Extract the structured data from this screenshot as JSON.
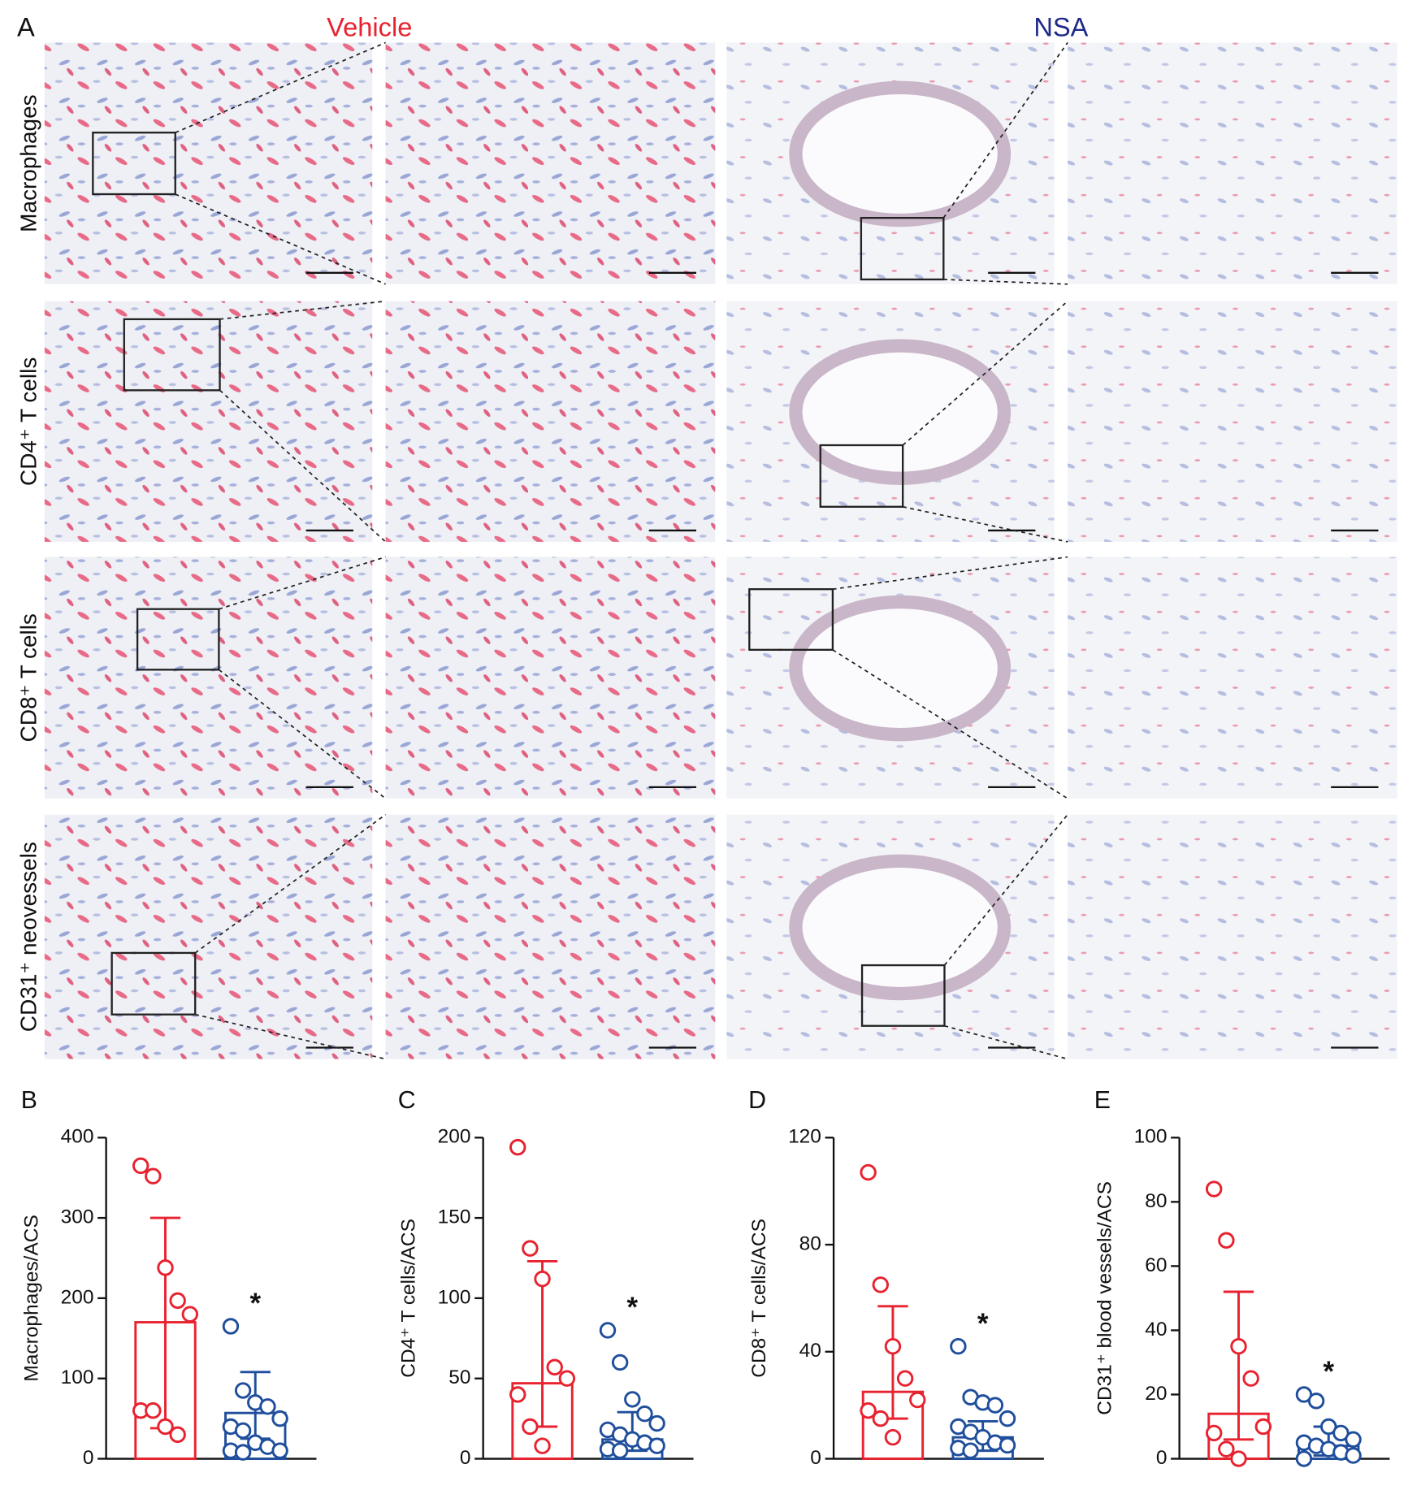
{
  "panel_a": {
    "label": "A",
    "columns": [
      "Vehicle",
      "NSA"
    ],
    "rows": [
      "Macrophages",
      "CD4⁺ T cells",
      "CD8⁺ T cells",
      "CD31⁺ neovessels"
    ]
  },
  "chart_data": [
    {
      "type": "bar",
      "label": "B",
      "y_label": "Macrophages/ACS",
      "categories": [
        null,
        null
      ],
      "colors": [
        "#e8222f",
        "#1f4e9c"
      ],
      "values": [
        170,
        57
      ],
      "error_low": [
        38,
        25
      ],
      "error_high": [
        300,
        108
      ],
      "points": [
        [
          365,
          352,
          238,
          197,
          180,
          60,
          60,
          40,
          30
        ],
        [
          165,
          85,
          70,
          65,
          50,
          40,
          35,
          20,
          15,
          10,
          10,
          8
        ]
      ],
      "annotations": [
        null,
        "*"
      ],
      "ylim": [
        0,
        400
      ],
      "yticks": [
        0,
        100,
        200,
        300,
        400
      ]
    },
    {
      "type": "bar",
      "label": "C",
      "y_label": "CD4⁺ T cells/ACS",
      "categories": [
        null,
        null
      ],
      "colors": [
        "#e8222f",
        "#1f4e9c"
      ],
      "values": [
        47,
        12
      ],
      "error_low": [
        20,
        5
      ],
      "error_high": [
        123,
        29
      ],
      "points": [
        [
          194,
          131,
          112,
          57,
          50,
          40,
          20,
          8
        ],
        [
          80,
          60,
          37,
          28,
          22,
          18,
          15,
          12,
          10,
          8,
          6,
          5
        ]
      ],
      "annotations": [
        null,
        "*"
      ],
      "ylim": [
        0,
        200
      ],
      "yticks": [
        0,
        50,
        100,
        150,
        200
      ]
    },
    {
      "type": "bar",
      "label": "D",
      "y_label": "CD8⁺ T cells/ACS",
      "categories": [
        null,
        null
      ],
      "colors": [
        "#e8222f",
        "#1f4e9c"
      ],
      "values": [
        25,
        8
      ],
      "error_low": [
        15,
        3
      ],
      "error_high": [
        57,
        14
      ],
      "points": [
        [
          107,
          65,
          42,
          30,
          22,
          18,
          15,
          8
        ],
        [
          42,
          23,
          21,
          20,
          15,
          12,
          10,
          8,
          6,
          5,
          4,
          3
        ]
      ],
      "annotations": [
        null,
        "*"
      ],
      "ylim": [
        0,
        120
      ],
      "yticks": [
        0,
        40,
        80,
        120
      ]
    },
    {
      "type": "bar",
      "label": "E",
      "y_label": "CD31⁺ blood vessels/ACS",
      "categories": [
        null,
        null
      ],
      "colors": [
        "#e8222f",
        "#1f4e9c"
      ],
      "values": [
        14,
        4
      ],
      "error_low": [
        6,
        1
      ],
      "error_high": [
        52,
        10
      ],
      "points": [
        [
          84,
          68,
          35,
          25,
          10,
          8,
          3,
          0
        ],
        [
          20,
          18,
          10,
          8,
          6,
          5,
          4,
          3,
          2,
          1,
          0
        ]
      ],
      "annotations": [
        null,
        "*"
      ],
      "ylim": [
        0,
        100
      ],
      "yticks": [
        0,
        20,
        40,
        60,
        80,
        100
      ]
    }
  ]
}
